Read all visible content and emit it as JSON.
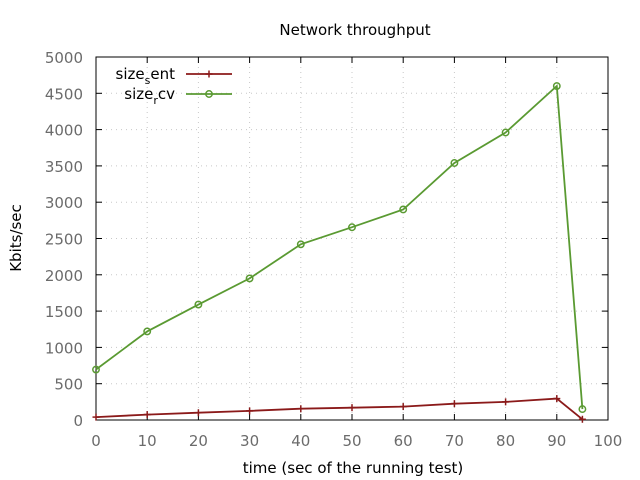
{
  "chart_data": {
    "type": "line",
    "title": "Network throughput",
    "xlabel": "time (sec of the running test)",
    "ylabel": "Kbits/sec",
    "xlim": [
      0,
      100
    ],
    "ylim": [
      0,
      5000
    ],
    "xticks": [
      0,
      10,
      20,
      30,
      40,
      50,
      60,
      70,
      80,
      90,
      100
    ],
    "yticks": [
      0,
      500,
      1000,
      1500,
      2000,
      2500,
      3000,
      3500,
      4000,
      4500,
      5000
    ],
    "grid": true,
    "legend_position": "top-left",
    "series": [
      {
        "name_base": "size",
        "name_sub": "s",
        "name_rest": "ent",
        "color": "#8b1a1a",
        "marker": "plus",
        "x": [
          0,
          10,
          20,
          30,
          40,
          50,
          60,
          70,
          80,
          90,
          95
        ],
        "y": [
          40,
          75,
          100,
          125,
          155,
          170,
          185,
          225,
          250,
          295,
          10
        ]
      },
      {
        "name_base": "size",
        "name_sub": "r",
        "name_rest": "cv",
        "color": "#5a9a32",
        "marker": "circle",
        "x": [
          0,
          10,
          20,
          30,
          40,
          50,
          60,
          70,
          80,
          90,
          95
        ],
        "y": [
          695,
          1220,
          1590,
          1950,
          2420,
          2655,
          2900,
          3540,
          3960,
          4600,
          150
        ]
      }
    ]
  }
}
